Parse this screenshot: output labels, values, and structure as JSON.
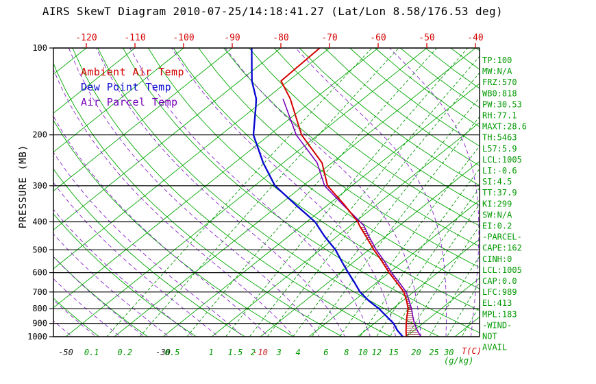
{
  "title": "AIRS SkewT Diagram 2010-07-25/14:18:41.27 (Lat/Lon 8.58/176.53 deg)",
  "legend": [
    {
      "label": "Ambient Air Temp",
      "color": "#d40000"
    },
    {
      "label": "Dew Point Temp",
      "color": "#0a0ad0"
    },
    {
      "label": "Air Parcel Temp",
      "color": "#7700bb"
    }
  ],
  "stats": [
    "TP:100",
    "MW:N/A",
    "FRZ:570",
    "WB0:818",
    "PW:30.53",
    "RH:77.1",
    "MAXT:28.6",
    "TH:5463",
    "L57:5.9",
    "LCL:1005",
    "LI:-0.6",
    "SI:4.5",
    "TT:37.9",
    "KI:299",
    "SW:N/A",
    "EI:0.2",
    "-PARCEL-",
    "CAPE:162",
    "CINH:0",
    "LCL:1005",
    "CAP:0.0",
    "LFC:989",
    "EL:413",
    "MPL:183",
    "-WIND-",
    "NOT",
    "AVAIL"
  ],
  "axes": {
    "pressure_label": "PRESSURE (MB)",
    "pressure_ticks": [
      100,
      200,
      300,
      400,
      500,
      600,
      700,
      800,
      900,
      1000
    ],
    "top_temp_ticks": [
      -120,
      -110,
      -100,
      -90,
      -80,
      -70,
      -60,
      -50,
      -40
    ],
    "bottom_temp_ticks": [
      {
        "value": -50,
        "color": "#1a1a1a"
      },
      {
        "value": -30,
        "color": "#1a1a1a"
      },
      {
        "value": -10,
        "color": "#cc2222"
      }
    ],
    "mixing_ratio_ticks": [
      0.1,
      0.2,
      0.5,
      1,
      1.5,
      2,
      3,
      4,
      6,
      8,
      10,
      12,
      15,
      20,
      25,
      30
    ],
    "temp_unit_label": "T(C)",
    "mixing_ratio_unit_label": "(g/kg)"
  },
  "colors": {
    "isotherm": "#00a800",
    "dry_adiabat": "#00a800",
    "moist_adiabat": "#8822cc",
    "mixing_ratio": "#009900",
    "pressure_line": "#000000",
    "stats_text": "#009900",
    "top_axis_text": "#d40000",
    "hatch": "#a23535"
  },
  "chart_data": {
    "type": "line",
    "subtype": "skewt-logp-sounding",
    "title": "AIRS SkewT Diagram 2010-07-25/14:18:41.27 (Lat/Lon 8.58/176.53 deg)",
    "xlabel": "T(C)",
    "ylabel": "PRESSURE (MB)",
    "y_scale": "log",
    "ylim": [
      1000,
      100
    ],
    "xlim_top_axis": [
      -120,
      -40
    ],
    "grid": {
      "isotherm_step_c": 10,
      "dry_adiabats": true,
      "moist_adiabats": true,
      "mixing_ratio_lines": true,
      "pressure_lines_mb": [
        100,
        200,
        300,
        400,
        500,
        600,
        700,
        800,
        900,
        1000
      ]
    },
    "series": [
      {
        "name": "Ambient Air Temp",
        "color": "#d40000",
        "points_p_t": [
          [
            1005,
            20.3
          ],
          [
            1000,
            20.0
          ],
          [
            950,
            18.3
          ],
          [
            900,
            16.6
          ],
          [
            850,
            14.9
          ],
          [
            800,
            13.2
          ],
          [
            750,
            10.8
          ],
          [
            700,
            8.0
          ],
          [
            650,
            4.2
          ],
          [
            600,
            0.0
          ],
          [
            550,
            -4.2
          ],
          [
            500,
            -9.0
          ],
          [
            450,
            -14.0
          ],
          [
            413,
            -18.1
          ],
          [
            400,
            -19.5
          ],
          [
            350,
            -26.5
          ],
          [
            300,
            -35.0
          ],
          [
            250,
            -42.0
          ],
          [
            200,
            -53.4
          ],
          [
            150,
            -65.0
          ],
          [
            130,
            -71.5
          ],
          [
            100,
            -72.0
          ]
        ]
      },
      {
        "name": "Dew Point Temp",
        "color": "#0a0ad0",
        "points_p_t": [
          [
            1005,
            19.4
          ],
          [
            1000,
            19.3
          ],
          [
            950,
            16.5
          ],
          [
            900,
            14.0
          ],
          [
            850,
            10.7
          ],
          [
            800,
            7.2
          ],
          [
            750,
            3.0
          ],
          [
            700,
            -1.0
          ],
          [
            650,
            -4.5
          ],
          [
            600,
            -8.4
          ],
          [
            550,
            -12.5
          ],
          [
            500,
            -16.9
          ],
          [
            450,
            -22.5
          ],
          [
            400,
            -28.3
          ],
          [
            350,
            -36.5
          ],
          [
            300,
            -45.8
          ],
          [
            250,
            -54.1
          ],
          [
            200,
            -63.3
          ],
          [
            160,
            -70.0
          ],
          [
            150,
            -72.0
          ],
          [
            130,
            -77.5
          ],
          [
            100,
            -86.0
          ]
        ]
      },
      {
        "name": "Air Parcel Temp",
        "color": "#7700bb",
        "points_p_t": [
          [
            1005,
            23.2
          ],
          [
            1000,
            23.0
          ],
          [
            950,
            20.6
          ],
          [
            900,
            18.3
          ],
          [
            850,
            16.1
          ],
          [
            800,
            13.9
          ],
          [
            750,
            11.3
          ],
          [
            700,
            8.5
          ],
          [
            650,
            4.7
          ],
          [
            600,
            0.5
          ],
          [
            550,
            -3.7
          ],
          [
            500,
            -8.5
          ],
          [
            450,
            -13.4
          ],
          [
            413,
            -17.2
          ],
          [
            400,
            -19.0
          ],
          [
            350,
            -26.8
          ],
          [
            300,
            -35.6
          ],
          [
            250,
            -43.0
          ],
          [
            200,
            -54.5
          ],
          [
            150,
            -66.5
          ]
        ]
      }
    ],
    "cape_hatch": {
      "between": [
        "Air Parcel Temp",
        "Ambient Air Temp"
      ],
      "p_range": [
        1005,
        413
      ]
    }
  }
}
